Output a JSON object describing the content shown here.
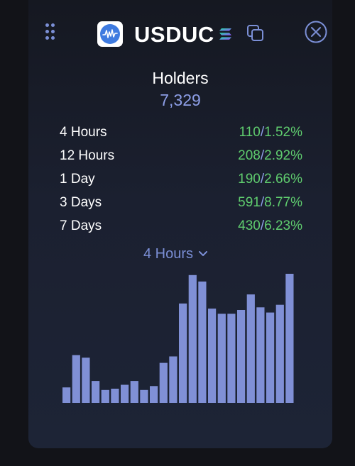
{
  "header": {
    "token_name": "USDUC",
    "logo_icon": "usduc-logo-icon",
    "chain_icon": "solana-icon",
    "copy_icon": "copy-icon",
    "close_icon": "close-icon",
    "drag_icon": "drag-handle-icon"
  },
  "holders": {
    "label": "Holders",
    "count": "7,329"
  },
  "stats": [
    {
      "period": "4 Hours",
      "count": "110",
      "percent": "1.52%"
    },
    {
      "period": "12 Hours",
      "count": "208",
      "percent": "2.92%"
    },
    {
      "period": "1 Day",
      "count": "190",
      "percent": "2.66%"
    },
    {
      "period": "3 Days",
      "count": "591",
      "percent": "8.77%"
    },
    {
      "period": "7 Days",
      "count": "430",
      "percent": "6.23%"
    }
  ],
  "range_selector": {
    "selected": "4 Hours"
  },
  "colors": {
    "accent": "#7b8fd6",
    "positive": "#5fcc6e",
    "bar": "#8090d6",
    "background": "#121318"
  },
  "chart_data": {
    "type": "bar",
    "title": "",
    "xlabel": "",
    "ylabel": "",
    "ylim": [
      0,
      100
    ],
    "values": [
      12,
      37,
      35,
      17,
      10,
      11,
      14,
      17,
      10,
      13,
      31,
      36,
      77,
      99,
      94,
      73,
      69,
      69,
      72,
      84,
      74,
      70,
      76,
      100
    ]
  }
}
